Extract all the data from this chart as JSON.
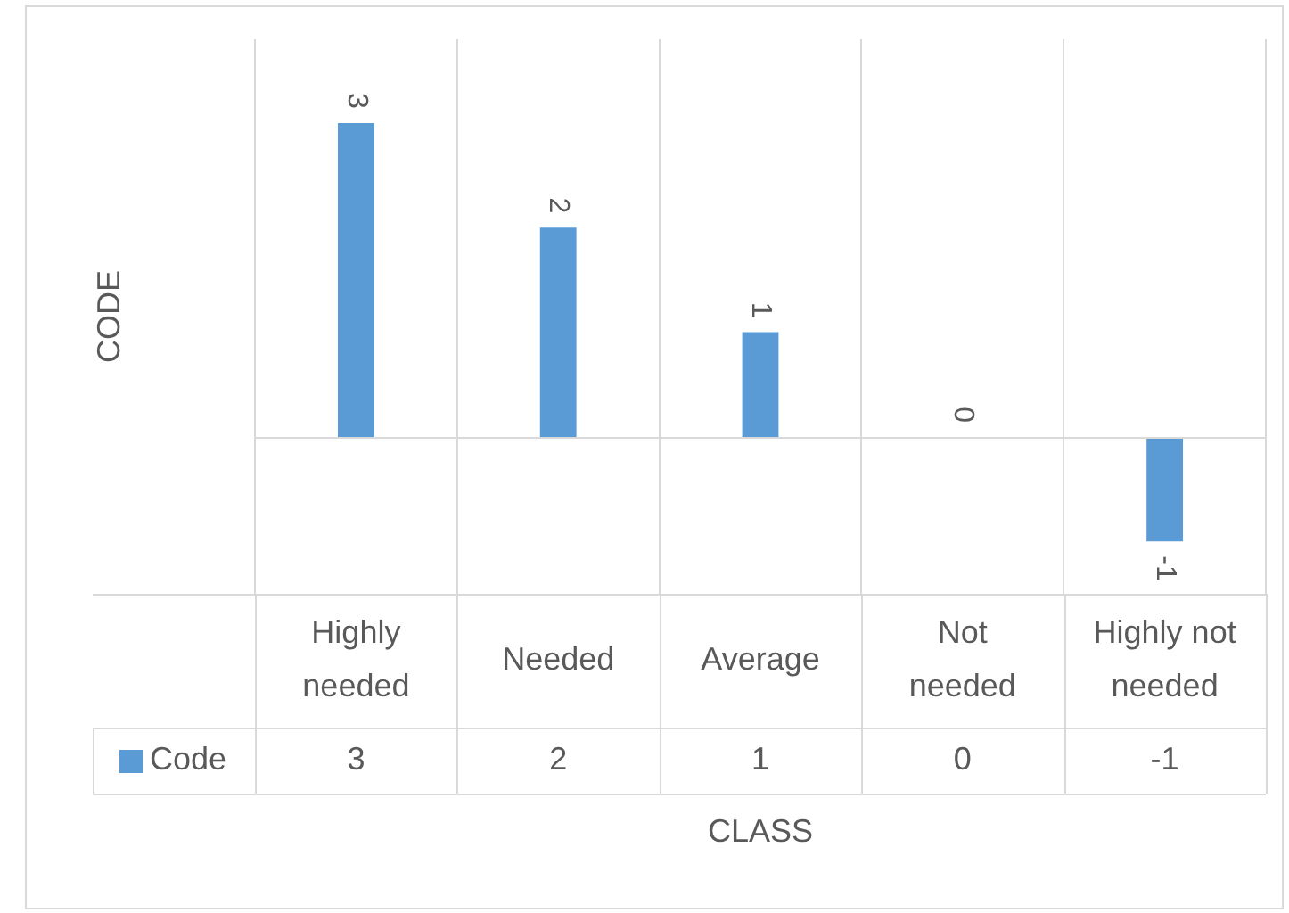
{
  "chart_data": {
    "type": "bar",
    "xlabel": "CLASS",
    "ylabel": "CODE",
    "categories": [
      "Highly needed",
      "Needed",
      "Average",
      "Not needed",
      "Highly not needed"
    ],
    "series": [
      {
        "name": "Code",
        "color": "#5b9bd5",
        "values": [
          3,
          2,
          1,
          0,
          -1
        ],
        "value_labels": [
          "3",
          "2",
          "1",
          "0",
          "-1"
        ]
      }
    ],
    "ylim": [
      -1.5,
      3.8
    ],
    "grid": "x",
    "legend": "bottom"
  }
}
